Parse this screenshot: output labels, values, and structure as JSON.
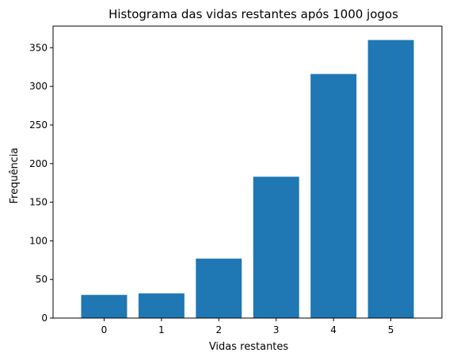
{
  "chart_data": {
    "type": "bar",
    "title": "Histograma das vidas restantes após 1000 jogos",
    "xlabel": "Vidas restantes",
    "ylabel": "Frequência",
    "categories": [
      "0",
      "1",
      "2",
      "3",
      "4",
      "5"
    ],
    "values": [
      30,
      32,
      77,
      183,
      316,
      360
    ],
    "ylim": [
      0,
      378
    ],
    "yticks": [
      0,
      50,
      100,
      150,
      200,
      250,
      300,
      350
    ],
    "bar_color": "#1f77b4",
    "grid": false
  }
}
